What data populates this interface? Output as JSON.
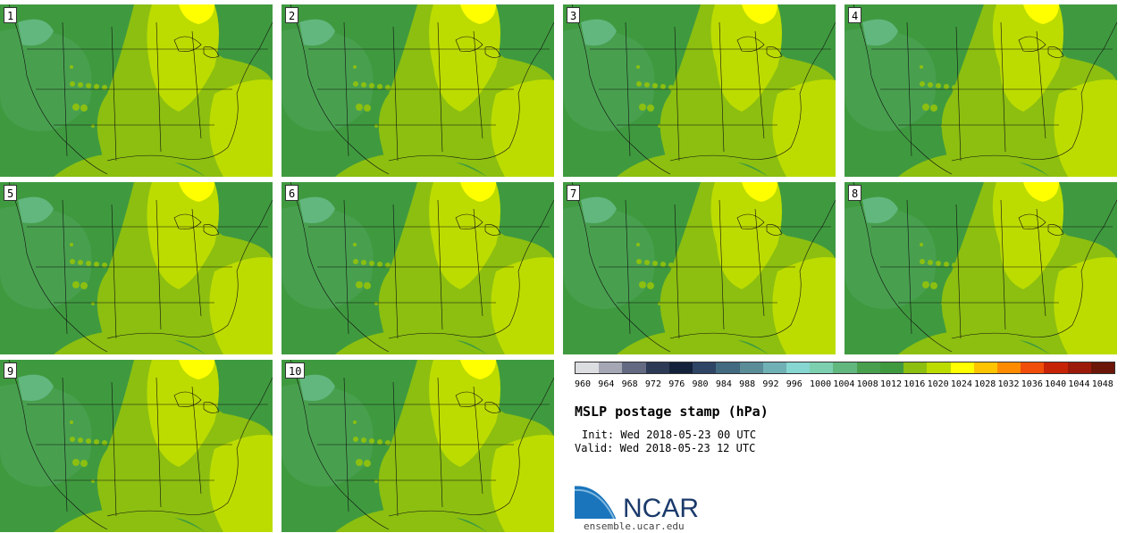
{
  "panels": [
    {
      "label": "1"
    },
    {
      "label": "2"
    },
    {
      "label": "3"
    },
    {
      "label": "4"
    },
    {
      "label": "5"
    },
    {
      "label": "6"
    },
    {
      "label": "7"
    },
    {
      "label": "8"
    },
    {
      "label": "9"
    },
    {
      "label": "10"
    }
  ],
  "legend": {
    "colors": [
      "#dcdde0",
      "#a5a8b4",
      "#636a81",
      "#2c3a55",
      "#14213b",
      "#2e4566",
      "#426a80",
      "#5a8d98",
      "#70b1b5",
      "#86d7d1",
      "#7cd0b0",
      "#62b77f",
      "#48a04f",
      "#3f9a3f",
      "#8cbf10",
      "#bcdc00",
      "#ffff00",
      "#ffc400",
      "#ff8c00",
      "#f04e0a",
      "#c72306",
      "#9b1a0a",
      "#6b1608"
    ],
    "ticks": [
      "960",
      "964",
      "968",
      "972",
      "976",
      "980",
      "984",
      "988",
      "992",
      "996",
      "1000",
      "1004",
      "1008",
      "1012",
      "1016",
      "1020",
      "1024",
      "1028",
      "1032",
      "1036",
      "1040",
      "1044",
      "1048"
    ]
  },
  "title": "MSLP postage stamp (hPa)",
  "init": "Init: Wed 2018-05-23 00 UTC",
  "valid": "Valid: Wed 2018-05-23 12 UTC",
  "logo_text": "NCAR",
  "url": "ensemble.ucar.edu"
}
